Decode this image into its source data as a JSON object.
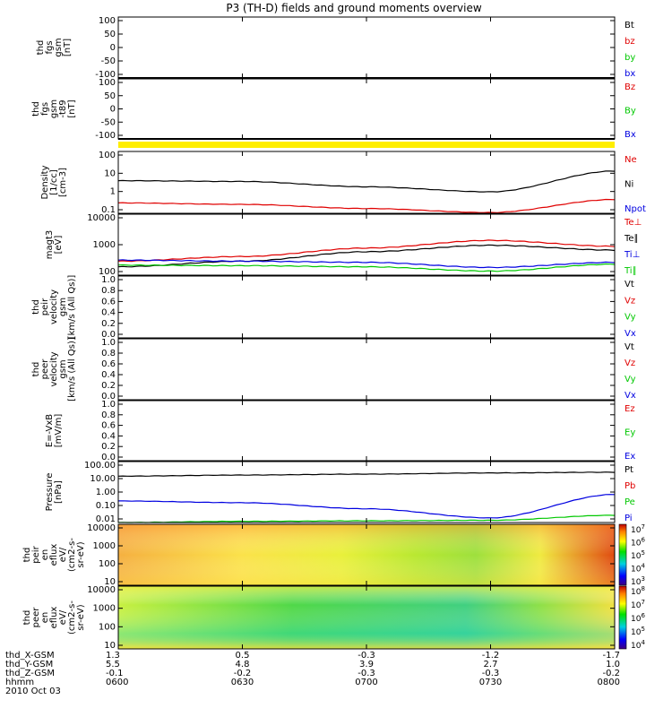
{
  "title": "P3 (TH-D) fields and ground moments overview",
  "colors": {
    "black": "#000000",
    "red": "#e00000",
    "green": "#00c800",
    "blue": "#0000e0",
    "yellow": "#ffee00"
  },
  "panels": [
    {
      "id": "fgs",
      "ylabel": [
        "thd",
        "fgs",
        "gsm",
        "[nT]"
      ],
      "ticks": [
        "100",
        "50",
        "0",
        "-50",
        "-100"
      ],
      "legend": [
        {
          "text": "Bt",
          "color": "black"
        },
        {
          "text": "bz",
          "color": "red"
        },
        {
          "text": "by",
          "color": "green"
        },
        {
          "text": "bx",
          "color": "blue"
        }
      ]
    },
    {
      "id": "fgs_t89",
      "ylabel": [
        "thd",
        "fgs",
        "gsm",
        "-t89",
        "[nT]"
      ],
      "ticks": [
        "100",
        "50",
        "0",
        "-50",
        "-100"
      ],
      "legend": [
        {
          "text": "Bz",
          "color": "red"
        },
        {
          "text": "By",
          "color": "green"
        },
        {
          "text": "Bx",
          "color": "blue"
        }
      ]
    },
    {
      "id": "density",
      "ylabel": [
        "Density",
        "[1/cc]",
        "[cm-3]"
      ],
      "ticks": [
        "100",
        "10",
        "1",
        "0.1"
      ],
      "legend": [
        {
          "text": "Ne",
          "color": "red"
        },
        {
          "text": "Ni",
          "color": "black"
        },
        {
          "text": "Npot",
          "color": "blue"
        }
      ]
    },
    {
      "id": "temp",
      "ylabel": [
        "magt3",
        "[eV]"
      ],
      "ticks": [
        "10000",
        "1000",
        "100"
      ],
      "legend": [
        {
          "text": "Te⊥",
          "color": "red"
        },
        {
          "text": "Te∥",
          "color": "black"
        },
        {
          "text": "Ti⊥",
          "color": "blue"
        },
        {
          "text": "Ti∥",
          "color": "green"
        }
      ]
    },
    {
      "id": "peir_vel",
      "ylabel": [
        "thd",
        "peir",
        "velocity",
        "gsm",
        "[km/s (All Qs)]"
      ],
      "ticks": [
        "1.0",
        "0.8",
        "0.6",
        "0.4",
        "0.2",
        "0.0"
      ],
      "legend": [
        {
          "text": "Vt",
          "color": "black"
        },
        {
          "text": "Vz",
          "color": "red"
        },
        {
          "text": "Vy",
          "color": "green"
        },
        {
          "text": "Vx",
          "color": "blue"
        }
      ]
    },
    {
      "id": "peer_vel",
      "ylabel": [
        "thd",
        "peer",
        "velocity",
        "gsm",
        "[km/s (All Qs)]"
      ],
      "ticks": [
        "1.0",
        "0.8",
        "0.6",
        "0.4",
        "0.2",
        "0.0"
      ],
      "legend": [
        {
          "text": "Vt",
          "color": "black"
        },
        {
          "text": "Vz",
          "color": "red"
        },
        {
          "text": "Vy",
          "color": "green"
        },
        {
          "text": "Vx",
          "color": "blue"
        }
      ]
    },
    {
      "id": "efield",
      "ylabel": [
        "E=-VxB",
        "[mV/m]"
      ],
      "ticks": [
        "1.0",
        "0.8",
        "0.6",
        "0.4",
        "0.2",
        "0.0"
      ],
      "legend": [
        {
          "text": "Ez",
          "color": "red"
        },
        {
          "text": "Ey",
          "color": "green"
        },
        {
          "text": "Ex",
          "color": "blue"
        }
      ]
    },
    {
      "id": "pressure",
      "ylabel": [
        "Pressure",
        "[nPa]"
      ],
      "ticks": [
        "100.00",
        "10.00",
        "1.00",
        "0.10",
        "0.01"
      ],
      "legend": [
        {
          "text": "Pt",
          "color": "black"
        },
        {
          "text": "Pb",
          "color": "red"
        },
        {
          "text": "Pe",
          "color": "green"
        },
        {
          "text": "Pi",
          "color": "blue"
        }
      ]
    },
    {
      "id": "peir_eflux",
      "ylabel": [
        "thd",
        "peir",
        "en",
        "eflux",
        "eV/",
        "(cm2-s-",
        "sr-eV)"
      ],
      "ticks": [
        "10000",
        "1000",
        "100",
        "10"
      ],
      "cbar": [
        "10^7",
        "10^6",
        "10^5",
        "10^4",
        "10^3"
      ]
    },
    {
      "id": "peer_eflux",
      "ylabel": [
        "thd",
        "peer",
        "en",
        "eflux",
        "eV/",
        "(cm2-s-",
        "sr-eV)"
      ],
      "ticks": [
        "10000",
        "1000",
        "100",
        "10"
      ],
      "cbar": [
        "10^8",
        "10^7",
        "10^6",
        "10^5",
        "10^4"
      ]
    }
  ],
  "ephemeris": {
    "labels": [
      "thd_X-GSM",
      "thd_Y-GSM",
      "thd_Z-GSM",
      "hhmm",
      "2010 Oct 03"
    ],
    "columns": [
      {
        "x": "1.3",
        "y": "5.5",
        "z": "-0.1",
        "t": "0600"
      },
      {
        "x": "0.5",
        "y": "4.8",
        "z": "-0.2",
        "t": "0630"
      },
      {
        "x": "-0.3",
        "y": "3.9",
        "z": "-0.3",
        "t": "0700"
      },
      {
        "x": "-1.2",
        "y": "2.7",
        "z": "-0.3",
        "t": "0730"
      },
      {
        "x": "-1.7",
        "y": "1.0",
        "z": "-0.2",
        "t": "0800"
      }
    ]
  },
  "chart_data": {
    "type": "line",
    "title": "P3 (TH-D) fields and ground moments overview",
    "x": [
      "0600",
      "0630",
      "0700",
      "0730",
      "0800"
    ],
    "xlabel": "hhmm",
    "series": [
      {
        "name": "Ni",
        "panel": "density",
        "scale": "log",
        "values": [
          5.5,
          5.0,
          2.6,
          1.4,
          18
        ]
      },
      {
        "name": "Ne",
        "panel": "density",
        "scale": "log",
        "values": [
          0.36,
          0.3,
          0.18,
          0.11,
          0.55
        ]
      },
      {
        "name": "Te⊥",
        "panel": "temp",
        "scale": "log",
        "values": [
          320,
          470,
          950,
          1800,
          1100
        ]
      },
      {
        "name": "Te∥",
        "panel": "temp",
        "scale": "log",
        "values": [
          200,
          320,
          700,
          1200,
          800
        ]
      },
      {
        "name": "Ti⊥",
        "panel": "temp",
        "scale": "log",
        "values": [
          350,
          320,
          290,
          190,
          290
        ]
      },
      {
        "name": "Ti∥",
        "panel": "temp",
        "scale": "log",
        "values": [
          230,
          220,
          200,
          140,
          250
        ]
      },
      {
        "name": "Pt",
        "panel": "pressure",
        "scale": "log",
        "values": [
          11,
          13,
          15,
          18,
          20
        ]
      },
      {
        "name": "Pi",
        "panel": "pressure",
        "scale": "log",
        "values": [
          0.26,
          0.2,
          0.08,
          0.02,
          0.7
        ]
      },
      {
        "name": "Pe",
        "panel": "pressure",
        "scale": "log",
        "values": [
          0.01,
          0.012,
          0.013,
          0.014,
          0.03
        ]
      }
    ]
  }
}
